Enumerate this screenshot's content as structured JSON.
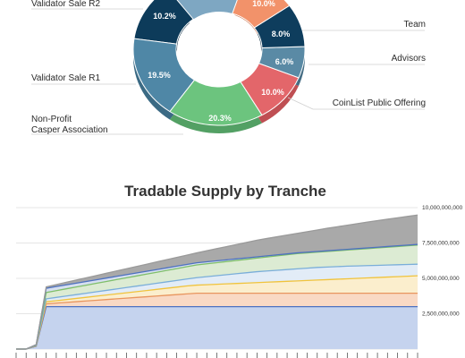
{
  "chart_data": [
    {
      "type": "pie",
      "variant": "donut",
      "visible_slices": [
        {
          "name": "Validator Sale R2",
          "value": 10.2,
          "color": "#0d3b5a",
          "shade": "#082a41"
        },
        {
          "name": "Validator Sale R1",
          "value": 19.5,
          "color": "#4f87a6",
          "shade": "#3b6a84"
        },
        {
          "name": "Non-Profit Casper Association",
          "value": 20.3,
          "color": "#6cc47e",
          "shade": "#53a064"
        },
        {
          "name": "CoinList Public Offering",
          "value": 10.0,
          "color": "#e3666a",
          "shade": "#bf4f53"
        },
        {
          "name": "Advisors",
          "value": 6.0,
          "color": "#5a8aa5",
          "shade": "#456d84"
        },
        {
          "name": "Team",
          "value": 8.0,
          "color": "#0e3d5d",
          "shade": "#0a2c43"
        },
        {
          "name": "",
          "value": 10.0,
          "color": "#f2926a",
          "shade": "#cc7651"
        }
      ],
      "hidden_top_color": "#7ea7c2",
      "labels": {
        "validator_r2": "Validator Sale R2",
        "validator_r1": "Validator Sale R1",
        "nonprofit_line1": "Non-Profit",
        "nonprofit_line2": "Casper Association",
        "coinlist": "CoinList Public Offering",
        "advisors": "Advisors",
        "team": "Team"
      },
      "value_labels": {
        "r2": "10.2%",
        "r1": "19.5%",
        "np": "20.3%",
        "coin": "10.0%",
        "adv": "6.0%",
        "team": "8.0%",
        "top": "10.0%"
      }
    },
    {
      "type": "area",
      "stacked": true,
      "title": "Tradable Supply by Tranche",
      "ylim": [
        0,
        10000000000
      ],
      "yticks": [
        2500000000,
        5000000000,
        7500000000,
        10000000000
      ],
      "ytick_labels": [
        "2,500,000,000",
        "5,000,000,000",
        "7,500,000,000",
        "10,000,000,000"
      ],
      "grid": true,
      "x_points": 41,
      "series": [
        {
          "values_key": "band1",
          "color": "#c5d3ee",
          "line": "#4e72c0",
          "values": [
            0,
            0,
            0,
            0,
            0,
            0,
            0,
            0,
            0,
            0,
            0,
            0,
            0,
            0,
            0,
            0,
            0,
            0,
            0,
            0,
            0,
            0,
            0,
            0,
            0,
            0,
            0,
            0,
            0,
            0,
            0,
            0,
            0,
            0,
            0,
            0,
            0,
            0,
            0,
            0,
            0
          ]
        },
        {
          "values_key": "band2",
          "color": "#f9d9c4",
          "line": "#e8955e"
        },
        {
          "values_key": "band3",
          "color": "#fbeecd",
          "line": "#f0c33c"
        },
        {
          "values_key": "band4",
          "color": "#e2ecf7",
          "line": "#7aaed9"
        },
        {
          "values_key": "band5",
          "color": "#dcebd3",
          "line": "#7fbf6a"
        },
        {
          "values_key": "band6",
          "color": "#d6dff0",
          "line": "#4e72c0"
        },
        {
          "values_key": "band7",
          "color": "#a9a9a9",
          "line": "#9a9a9a"
        }
      ],
      "cumulative_tops": [
        [
          0,
          0,
          200000000,
          3000000000,
          3000000000,
          3000000000,
          3000000000,
          3000000000,
          3000000000,
          3000000000,
          3000000000,
          3000000000,
          3000000000,
          3000000000,
          3000000000,
          3000000000,
          3000000000,
          3000000000,
          3000000000,
          3000000000,
          3000000000,
          3000000000,
          3000000000,
          3000000000,
          3000000000,
          3000000000,
          3000000000,
          3000000000,
          3000000000,
          3000000000,
          3000000000,
          3000000000,
          3000000000,
          3000000000,
          3000000000,
          3000000000,
          3000000000,
          3000000000,
          3000000000,
          3000000000,
          3000000000
        ],
        [
          0,
          0,
          220000000,
          3200000000,
          3250000000,
          3300000000,
          3350000000,
          3400000000,
          3450000000,
          3500000000,
          3550000000,
          3600000000,
          3650000000,
          3700000000,
          3750000000,
          3800000000,
          3850000000,
          3900000000,
          3950000000,
          3950000000,
          3950000000,
          3950000000,
          3950000000,
          3950000000,
          3950000000,
          3950000000,
          3950000000,
          3950000000,
          3950000000,
          3950000000,
          3950000000,
          3950000000,
          3950000000,
          3950000000,
          3950000000,
          3950000000,
          3950000000,
          3950000000,
          3950000000,
          3950000000,
          3950000000
        ],
        [
          0,
          0,
          240000000,
          3350000000,
          3420000000,
          3500000000,
          3580000000,
          3660000000,
          3740000000,
          3820000000,
          3900000000,
          3980000000,
          4060000000,
          4140000000,
          4220000000,
          4300000000,
          4380000000,
          4460000000,
          4520000000,
          4550000000,
          4580000000,
          4610000000,
          4640000000,
          4670000000,
          4700000000,
          4730000000,
          4760000000,
          4790000000,
          4820000000,
          4850000000,
          4880000000,
          4910000000,
          4940000000,
          4970000000,
          5000000000,
          5030000000,
          5060000000,
          5090000000,
          5120000000,
          5150000000,
          5180000000
        ],
        [
          0,
          0,
          260000000,
          3550000000,
          3650000000,
          3750000000,
          3850000000,
          3950000000,
          4050000000,
          4150000000,
          4250000000,
          4350000000,
          4450000000,
          4550000000,
          4650000000,
          4750000000,
          4850000000,
          4950000000,
          5050000000,
          5120000000,
          5190000000,
          5260000000,
          5330000000,
          5400000000,
          5470000000,
          5520000000,
          5570000000,
          5620000000,
          5670000000,
          5720000000,
          5770000000,
          5800000000,
          5830000000,
          5860000000,
          5880000000,
          5900000000,
          5920000000,
          5940000000,
          5960000000,
          5980000000,
          6000000000
        ],
        [
          0,
          0,
          280000000,
          4000000000,
          4130000000,
          4260000000,
          4390000000,
          4520000000,
          4650000000,
          4780000000,
          4910000000,
          5040000000,
          5170000000,
          5300000000,
          5430000000,
          5560000000,
          5690000000,
          5820000000,
          5950000000,
          6030000000,
          6110000000,
          6190000000,
          6270000000,
          6350000000,
          6430000000,
          6510000000,
          6590000000,
          6670000000,
          6750000000,
          6800000000,
          6850000000,
          6900000000,
          6950000000,
          7000000000,
          7050000000,
          7100000000,
          7150000000,
          7200000000,
          7250000000,
          7300000000,
          7350000000
        ],
        [
          0,
          0,
          300000000,
          4300000000,
          4420000000,
          4540000000,
          4660000000,
          4780000000,
          4900000000,
          5020000000,
          5140000000,
          5260000000,
          5380000000,
          5500000000,
          5620000000,
          5740000000,
          5860000000,
          5980000000,
          6100000000,
          6170000000,
          6240000000,
          6310000000,
          6380000000,
          6450000000,
          6520000000,
          6590000000,
          6660000000,
          6730000000,
          6800000000,
          6850000000,
          6900000000,
          6950000000,
          7000000000,
          7050000000,
          7100000000,
          7150000000,
          7200000000,
          7250000000,
          7300000000,
          7350000000,
          7400000000
        ],
        [
          0,
          0,
          320000000,
          4400000000,
          4560000000,
          4720000000,
          4880000000,
          5040000000,
          5200000000,
          5360000000,
          5520000000,
          5680000000,
          5840000000,
          6000000000,
          6160000000,
          6320000000,
          6480000000,
          6640000000,
          6800000000,
          6950000000,
          7100000000,
          7250000000,
          7400000000,
          7550000000,
          7700000000,
          7820000000,
          7940000000,
          8060000000,
          8180000000,
          8300000000,
          8420000000,
          8540000000,
          8650000000,
          8760000000,
          8870000000,
          8980000000,
          9080000000,
          9180000000,
          9280000000,
          9380000000,
          9480000000
        ]
      ]
    }
  ]
}
